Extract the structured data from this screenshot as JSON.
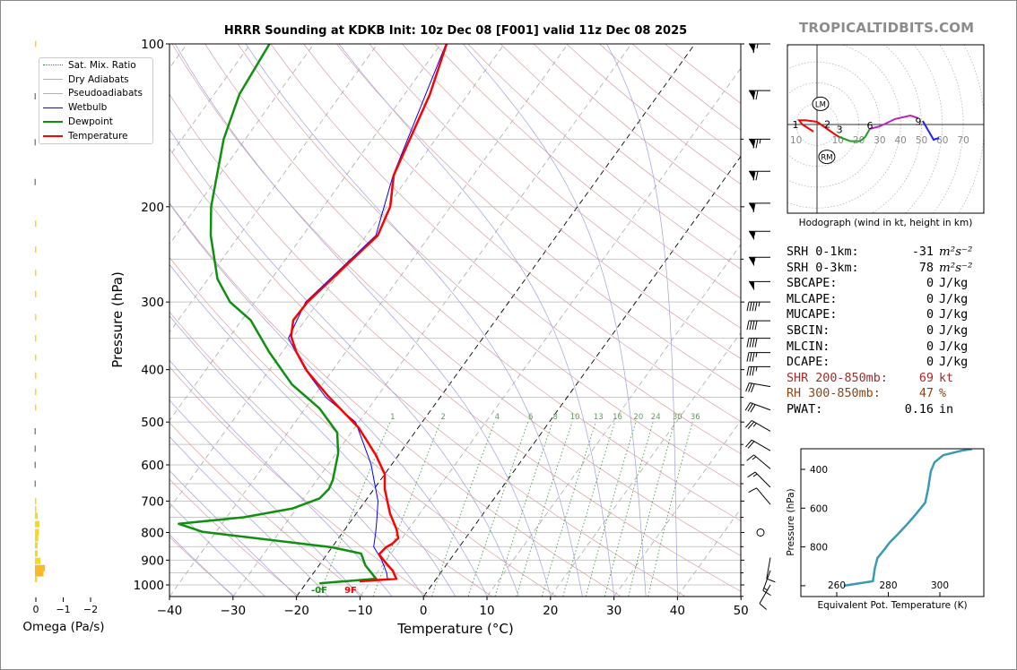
{
  "title": "HRRR Sounding at KDKB Init: 10z Dec 08 [F001] valid 11z Dec 08 2025",
  "watermark": "TROPICALTIDBITS.COM",
  "legend": [
    {
      "label": "Sat. Mix. Ratio",
      "color": "#2e8b2e",
      "style": "dotted"
    },
    {
      "label": "Dry Adiabats",
      "color": "#b0b0b0",
      "style": "solid"
    },
    {
      "label": "Pseudoadiabats",
      "color": "#b0b0b0",
      "style": "solid"
    },
    {
      "label": "Wetbulb",
      "color": "#1a1a6e",
      "style": "thin"
    },
    {
      "label": "Dewpoint",
      "color": "#109010",
      "style": "thick"
    },
    {
      "label": "Temperature",
      "color": "#ff0000",
      "style": "thick"
    }
  ],
  "stats": [
    {
      "label": "SRH 0-1km:",
      "value": "-31",
      "unit": "m²s⁻²",
      "color": "#000000"
    },
    {
      "label": "SRH 0-3km:",
      "value": "78",
      "unit": "m²s⁻²",
      "color": "#000000"
    },
    {
      "label": "SBCAPE:",
      "value": "0",
      "unit": "J/kg",
      "color": "#000000"
    },
    {
      "label": "MLCAPE:",
      "value": "0",
      "unit": "J/kg",
      "color": "#000000"
    },
    {
      "label": "MUCAPE:",
      "value": "0",
      "unit": "J/kg",
      "color": "#000000"
    },
    {
      "label": "SBCIN:",
      "value": "0",
      "unit": "J/kg",
      "color": "#000000"
    },
    {
      "label": "MLCIN:",
      "value": "0",
      "unit": "J/kg",
      "color": "#000000"
    },
    {
      "label": "DCAPE:",
      "value": "0",
      "unit": "J/kg",
      "color": "#000000"
    },
    {
      "label": "SHR 200-850mb:",
      "value": "69",
      "unit": "kt",
      "color": "#a52a2a"
    },
    {
      "label": "RH 300-850mb:",
      "value": "47",
      "unit": "%",
      "color": "#8b4513"
    },
    {
      "label": "PWAT:",
      "value": "0.16",
      "unit": "in",
      "color": "#000000"
    }
  ],
  "chart_data": [
    {
      "name": "skew-t",
      "type": "line",
      "title": "HRRR Sounding at KDKB Init: 10z Dec 08 [F001] valid 11z Dec 08 2025",
      "xlabel": "Temperature (°C)",
      "ylabel": "Pressure (hPa)",
      "xlim": [
        -40,
        50
      ],
      "ylim": [
        1050,
        100
      ],
      "xticks": [
        -40,
        -30,
        -20,
        -10,
        0,
        10,
        20,
        30,
        40,
        50
      ],
      "yticks": [
        100,
        200,
        300,
        400,
        500,
        600,
        700,
        800,
        900,
        1000
      ],
      "legend_position": "top-left",
      "highlighted_isotherms": [
        0,
        -20
      ],
      "mixing_ratio_lines": [
        1,
        2,
        4,
        6,
        8,
        10,
        13,
        16,
        20,
        24,
        30,
        36
      ],
      "surface_labels": {
        "dewpoint": "-0F",
        "temperature": "9F"
      },
      "series": [
        {
          "name": "Temperature",
          "color": "#ff0000",
          "points": [
            [
              100,
              -59.1
            ],
            [
              124,
              -56
            ],
            [
              175,
              -52.5
            ],
            [
              200,
              -49.5
            ],
            [
              226,
              -48.2
            ],
            [
              300,
              -51.7
            ],
            [
              324,
              -51.9
            ],
            [
              347,
              -50.4
            ],
            [
              371,
              -47.8
            ],
            [
              402,
              -44
            ],
            [
              446,
              -38
            ],
            [
              513,
              -29.3
            ],
            [
              575,
              -23.6
            ],
            [
              624,
              -20
            ],
            [
              665,
              -18.3
            ],
            [
              738,
              -14.7
            ],
            [
              789,
              -11.9
            ],
            [
              820,
              -10.6
            ],
            [
              839,
              -10.9
            ],
            [
              852,
              -11.5
            ],
            [
              878,
              -11.8
            ],
            [
              913,
              -9.6
            ],
            [
              941,
              -7.8
            ],
            [
              974,
              -6.3
            ],
            [
              985,
              -11.8
            ]
          ]
        },
        {
          "name": "Dewpoint",
          "color": "#109010",
          "points": [
            [
              100,
              -87
            ],
            [
              124,
              -86
            ],
            [
              150,
              -83.4
            ],
            [
              200,
              -77.7
            ],
            [
              226,
              -74.5
            ],
            [
              272,
              -68.5
            ],
            [
              300,
              -63.9
            ],
            [
              324,
              -58.6
            ],
            [
              371,
              -52.1
            ],
            [
              426,
              -44.8
            ],
            [
              472,
              -37.7
            ],
            [
              523,
              -32.2
            ],
            [
              571,
              -29.7
            ],
            [
              640,
              -27.5
            ],
            [
              665,
              -27.1
            ],
            [
              692,
              -27.5
            ],
            [
              722,
              -30.6
            ],
            [
              750,
              -37.3
            ],
            [
              771,
              -46.8
            ],
            [
              798,
              -42.1
            ],
            [
              852,
              -20
            ],
            [
              875,
              -14.7
            ],
            [
              920,
              -12.7
            ],
            [
              974,
              -9.5
            ],
            [
              993,
              -17.9
            ]
          ]
        },
        {
          "name": "Wetbulb",
          "color": "#0000ff",
          "points": [
            [
              100,
              -59.2
            ],
            [
              175,
              -52.6
            ],
            [
              226,
              -48.5
            ],
            [
              300,
              -52
            ],
            [
              350,
              -50.6
            ],
            [
              400,
              -44.4
            ],
            [
              450,
              -38
            ],
            [
              500,
              -30.5
            ],
            [
              598,
              -23.3
            ],
            [
              650,
              -20.5
            ],
            [
              700,
              -18
            ],
            [
              760,
              -16
            ],
            [
              800,
              -14.8
            ],
            [
              850,
              -13.5
            ],
            [
              900,
              -10.7
            ],
            [
              950,
              -8.5
            ],
            [
              980,
              -7.5
            ]
          ]
        }
      ],
      "winds": [
        [
          100,
          65,
          270
        ],
        [
          122,
          70,
          270
        ],
        [
          150,
          75,
          270
        ],
        [
          172,
          70,
          270
        ],
        [
          197,
          60,
          270
        ],
        [
          222,
          55,
          270
        ],
        [
          248,
          55,
          270
        ],
        [
          275,
          50,
          270
        ],
        [
          300,
          45,
          270
        ],
        [
          325,
          40,
          270
        ],
        [
          350,
          40,
          270
        ],
        [
          372,
          35,
          270
        ],
        [
          395,
          35,
          270
        ],
        [
          430,
          30,
          280
        ],
        [
          475,
          30,
          290
        ],
        [
          520,
          25,
          300
        ],
        [
          565,
          20,
          300
        ],
        [
          610,
          15,
          310
        ],
        [
          660,
          15,
          315
        ],
        [
          710,
          10,
          320
        ],
        [
          800,
          0,
          0
        ],
        [
          890,
          10,
          190
        ],
        [
          940,
          15,
          200
        ],
        [
          1000,
          10,
          210
        ]
      ]
    },
    {
      "name": "omega",
      "type": "bar",
      "xlabel": "Omega (Pa/s)",
      "xticks": [
        0,
        -1,
        -2
      ],
      "xtick_labels": [
        "0",
        "−1",
        "−2"
      ],
      "values": [
        [
          100,
          -0.01
        ],
        [
          125,
          0.03
        ],
        [
          152,
          0.05
        ],
        [
          180,
          0.03
        ],
        [
          215,
          -0.01
        ],
        [
          240,
          -0.01
        ],
        [
          265,
          -0.02
        ],
        [
          290,
          -0.02
        ],
        [
          320,
          -0.01
        ],
        [
          350,
          -0.01
        ],
        [
          380,
          -0.02
        ],
        [
          410,
          -0.01
        ],
        [
          440,
          -0.01
        ],
        [
          470,
          -0.01
        ],
        [
          520,
          0.01
        ],
        [
          560,
          0.02
        ],
        [
          600,
          0.02
        ],
        [
          650,
          0.01
        ],
        [
          700,
          0.0
        ],
        [
          724,
          -0.05
        ],
        [
          745,
          -0.1
        ],
        [
          772,
          -0.17
        ],
        [
          799,
          -0.15
        ],
        [
          820,
          -0.12
        ],
        [
          845,
          -0.1
        ],
        [
          875,
          -0.1
        ],
        [
          903,
          -0.2
        ],
        [
          931,
          -0.37
        ],
        [
          952,
          -0.32
        ],
        [
          975,
          -0.08
        ]
      ]
    },
    {
      "name": "hodograph",
      "type": "line",
      "xlabel": "Hodograph (wind in kt, height in km)",
      "ring_labels": [
        [
          "10",
          -10
        ],
        [
          "10",
          10
        ],
        [
          "20",
          20
        ],
        [
          "30",
          30
        ],
        [
          "40",
          40
        ],
        [
          "50",
          50
        ],
        [
          "60",
          60
        ],
        [
          "70",
          70
        ]
      ],
      "segments": [
        {
          "color": "#ff0000",
          "points": [
            [
              -1.7,
              -3.4
            ],
            [
              -7,
              0
            ],
            [
              -8.6,
              2
            ],
            [
              -5.6,
              2
            ],
            [
              0,
              1.3
            ],
            [
              4.3,
              -1.7
            ],
            [
              8.6,
              -4.7
            ],
            [
              10.7,
              -6
            ]
          ]
        },
        {
          "color": "#22a022",
          "points": [
            [
              10.7,
              -6
            ],
            [
              16,
              -8
            ],
            [
              20.6,
              -8
            ],
            [
              23,
              -6
            ],
            [
              25.3,
              -2.1
            ]
          ]
        },
        {
          "color": "#c020c0",
          "points": [
            [
              25.3,
              -2.1
            ],
            [
              30,
              -0.9
            ],
            [
              37.3,
              2.6
            ],
            [
              44.6,
              4.3
            ],
            [
              48.5,
              3
            ]
          ]
        },
        {
          "color": "#2020ff",
          "points": [
            [
              50.6,
              1.7
            ],
            [
              55.8,
              -7.3
            ],
            [
              58.4,
              -6.4
            ]
          ]
        }
      ],
      "height_labels": [
        [
          "1",
          -10.3,
          0
        ],
        [
          "2",
          5,
          -2.4
        ],
        [
          "3",
          10.8,
          -5
        ],
        [
          "6",
          25.3,
          -3
        ],
        [
          "9",
          48.5,
          1.5
        ]
      ],
      "storm_motion": [
        [
          "LM",
          1.7,
          9.9
        ],
        [
          "RM",
          4.7,
          -15.5
        ]
      ]
    },
    {
      "name": "theta-e",
      "type": "line",
      "xlabel": "Equivalent Pot. Temperature (K)",
      "ylabel": "Pressure (hPa)",
      "xticks": [
        260,
        280,
        300
      ],
      "yticks": [
        400,
        600,
        800,
        1000
      ],
      "ytick_labels": [
        "400",
        "600",
        "800",
        ""
      ],
      "color": "#3a9ab5",
      "points": [
        [
          262.8,
          1000
        ],
        [
          274,
          977
        ],
        [
          274.8,
          908
        ],
        [
          275.8,
          857
        ],
        [
          278.6,
          811
        ],
        [
          280.4,
          779
        ],
        [
          283.8,
          733
        ],
        [
          288,
          673
        ],
        [
          291.5,
          618
        ],
        [
          294.3,
          572
        ],
        [
          295.4,
          503
        ],
        [
          296.5,
          410
        ],
        [
          297.9,
          364
        ],
        [
          301.3,
          327
        ],
        [
          308.3,
          304
        ],
        [
          312.5,
          295
        ]
      ]
    }
  ]
}
